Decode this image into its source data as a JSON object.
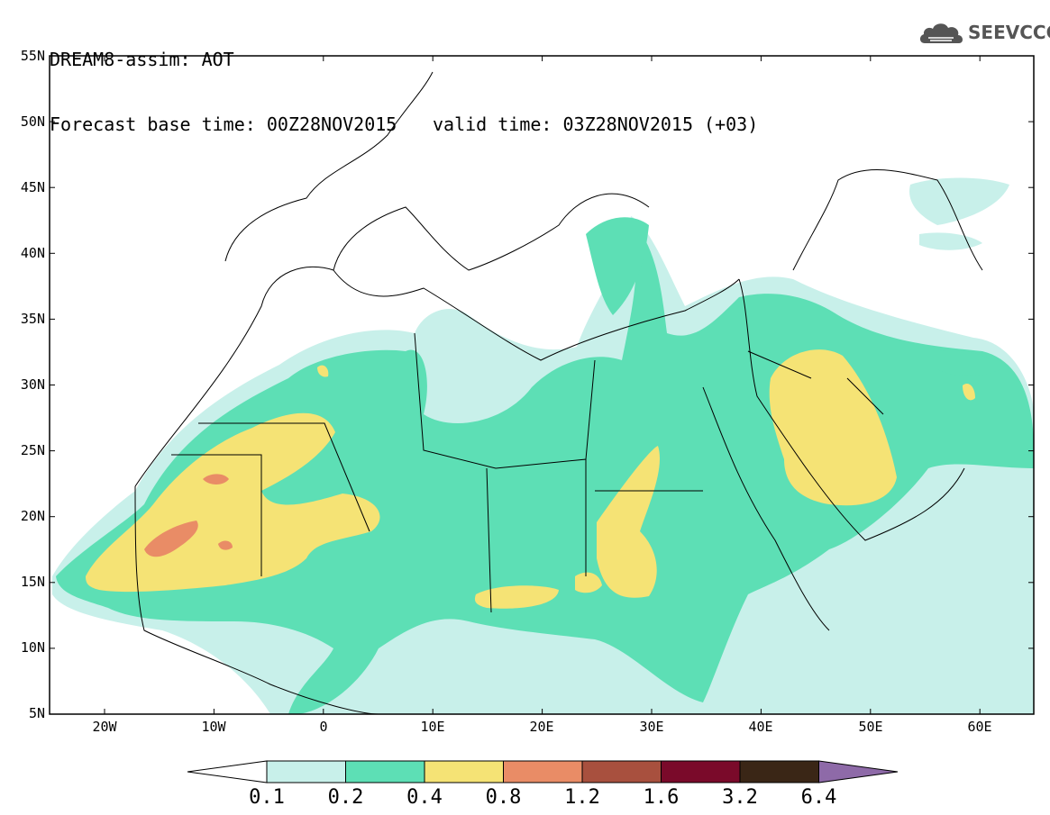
{
  "header": {
    "model_line": "DREAM8-assim: AOT",
    "base_time": "Forecast base time: 00Z28NOV2015",
    "valid_time": "valid time: 03Z28NOV2015 (+03)"
  },
  "logo": {
    "text": "SEEVCCC",
    "icon": "cloud-icon"
  },
  "map": {
    "lat_labels": [
      "55N",
      "50N",
      "45N",
      "40N",
      "35N",
      "30N",
      "25N",
      "20N",
      "15N",
      "10N",
      "5N"
    ],
    "lon_labels": [
      "20W",
      "10W",
      "0",
      "10E",
      "20E",
      "30E",
      "40E",
      "50E",
      "60E"
    ]
  },
  "colorbar": {
    "labels": [
      "0.1",
      "0.2",
      "0.4",
      "0.8",
      "1.2",
      "1.6",
      "3.2",
      "6.4"
    ],
    "colors": [
      "#c8f0ea",
      "#5ddfb5",
      "#f5e375",
      "#e98c66",
      "#a8503e",
      "#7a0a2a",
      "#3a2616",
      "#8e6aa8"
    ]
  }
}
